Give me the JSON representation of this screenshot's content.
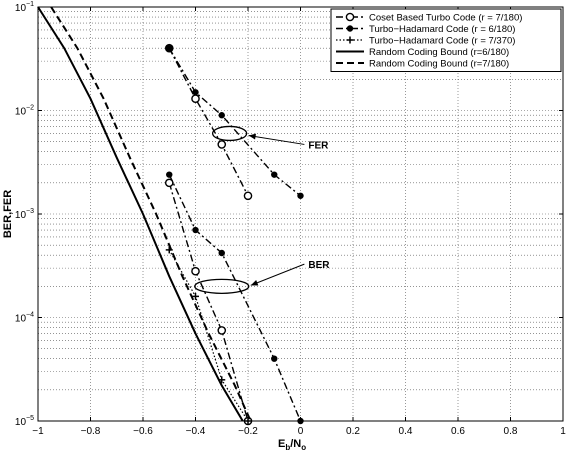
{
  "chart_data": {
    "type": "line",
    "xlabel": "E",
    "xlabel_sub": "b",
    "xlabel_mid": "/N",
    "xlabel_sub2": "o",
    "ylabel": "BER,FER",
    "xlim": [
      -1,
      1
    ],
    "ylim": [
      1e-05,
      0.1
    ],
    "yscale": "log",
    "grid": true,
    "legend_position": "top-right",
    "x_ticks": [
      -1,
      -0.8,
      -0.6,
      -0.4,
      -0.2,
      0,
      0.2,
      0.4,
      0.6,
      0.8,
      1
    ],
    "x_tick_labels": [
      "−1",
      "−0.8",
      "−0.6",
      "−0.4",
      "−0.2",
      "0",
      "0.2",
      "0.4",
      "0.6",
      "0.8",
      "1"
    ],
    "y_ticks": [
      1e-05,
      0.0001,
      0.001,
      0.01,
      0.1
    ],
    "y_tick_bases": [
      "10",
      "10",
      "10",
      "10",
      "10"
    ],
    "y_tick_exps": [
      "−5",
      "−4",
      "−3",
      "−2",
      "−1"
    ],
    "series": [
      {
        "name": "Coset Based Turbo Code (r = 7/180)",
        "style": "dashdot-open-circle",
        "x": [
          -0.5,
          -0.4,
          -0.3,
          -0.2
        ],
        "y": [
          0.04,
          0.013,
          0.0047,
          0.0015
        ]
      },
      {
        "name": "Coset Based Turbo Code (r = 7/180)",
        "style": "dashdot-open-circle",
        "x": [
          -0.5,
          -0.4,
          -0.3,
          -0.2
        ],
        "y": [
          0.002,
          0.00028,
          7.5e-05,
          1e-05
        ],
        "legend": false
      },
      {
        "name": "Turbo−Hadamard Code (r = 6/180)",
        "style": "dashdot-dot",
        "x": [
          -0.5,
          -0.4,
          -0.3,
          -0.1,
          0
        ],
        "y": [
          0.04,
          0.015,
          0.009,
          0.0024,
          0.0015
        ]
      },
      {
        "name": "Turbo−Hadamard Code (r = 6/180)",
        "style": "dashdot-dot",
        "x": [
          -0.5,
          -0.4,
          -0.3,
          -0.1,
          0
        ],
        "y": [
          0.0024,
          0.0007,
          0.00042,
          4e-05,
          1e-05
        ],
        "legend": false
      },
      {
        "name": "Turbo−Hadamard Code (r = 7/370)",
        "style": "dotted-plus",
        "x": [
          -0.5,
          -0.4,
          -0.3,
          -0.2
        ],
        "y": [
          0.00045,
          0.00016,
          2.5e-05,
          1e-05
        ]
      },
      {
        "name": "Random Coding Bound (r=6/180)",
        "style": "solid",
        "x": [
          -1,
          -0.9,
          -0.8,
          -0.7,
          -0.6,
          -0.5,
          -0.4,
          -0.3,
          -0.22
        ],
        "y": [
          0.1,
          0.04,
          0.013,
          0.0035,
          0.001,
          0.00025,
          7e-05,
          2.2e-05,
          1e-05
        ]
      },
      {
        "name": "Random Coding Bound (r=7/180)",
        "style": "dashed",
        "x": [
          -0.95,
          -0.85,
          -0.75,
          -0.65,
          -0.55,
          -0.45,
          -0.35,
          -0.25,
          -0.19
        ],
        "y": [
          0.1,
          0.04,
          0.013,
          0.0035,
          0.001,
          0.00025,
          7e-05,
          2.2e-05,
          1e-05
        ]
      }
    ],
    "annotations": [
      {
        "text": "FER",
        "ellipse_center": [
          -0.27,
          0.006
        ],
        "label_at": [
          0.03,
          0.0043
        ]
      },
      {
        "text": "BER",
        "ellipse_center": [
          -0.3,
          0.0002
        ],
        "label_at": [
          0.03,
          0.0003
        ]
      }
    ]
  }
}
